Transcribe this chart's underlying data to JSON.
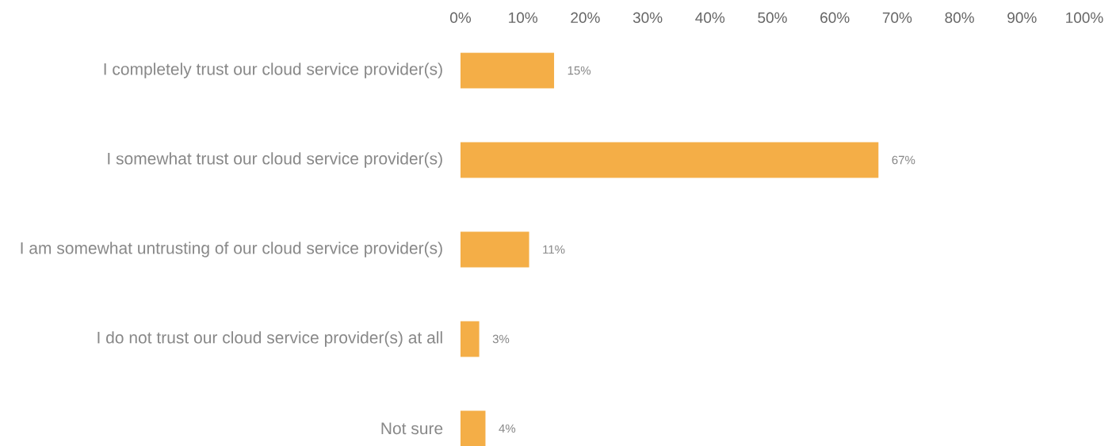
{
  "chart_data": {
    "type": "bar",
    "orientation": "horizontal",
    "categories": [
      "I completely trust our cloud service provider(s)",
      "I somewhat trust our cloud service provider(s)",
      "I am somewhat untrusting of our cloud service provider(s)",
      "I do not trust our cloud service provider(s) at all",
      "Not sure"
    ],
    "values": [
      15,
      67,
      11,
      3,
      4
    ],
    "value_labels": [
      "15%",
      "67%",
      "11%",
      "3%",
      "4%"
    ],
    "color": "#f4ae47",
    "xlim": [
      0,
      100
    ],
    "xticks": [
      {
        "value": 0,
        "label": "0%"
      },
      {
        "value": 10,
        "label": "10%"
      },
      {
        "value": 20,
        "label": "20%"
      },
      {
        "value": 30,
        "label": "30%"
      },
      {
        "value": 40,
        "label": "40%"
      },
      {
        "value": 50,
        "label": "50%"
      },
      {
        "value": 60,
        "label": "60%"
      },
      {
        "value": 70,
        "label": "70%"
      },
      {
        "value": 80,
        "label": "80%"
      },
      {
        "value": 90,
        "label": "90%"
      },
      {
        "value": 100,
        "label": "100%"
      }
    ]
  }
}
